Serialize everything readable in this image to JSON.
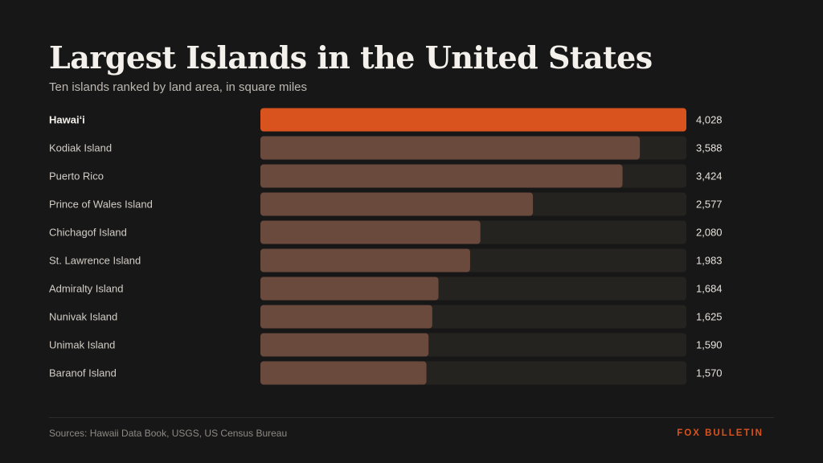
{
  "colors": {
    "background": "#171717",
    "highlight_bar": "#d9531e",
    "bar": "#6b4a3e",
    "track": "#252320",
    "brand": "#d9531e"
  },
  "footer": {
    "source": "Sources: Hawaii Data Book, USGS, US Census Bureau",
    "brand": "FOX BULLETIN"
  },
  "chart_data": {
    "type": "bar",
    "orientation": "horizontal",
    "title": "Largest Islands in the United States",
    "subtitle": "Ten islands ranked by land area, in square miles",
    "categories": [
      "Hawaiʻi",
      "Kodiak Island",
      "Puerto Rico",
      "Prince of Wales Island",
      "Chichagof Island",
      "St. Lawrence Island",
      "Admiralty Island",
      "Nunivak Island",
      "Unimak Island",
      "Baranof Island"
    ],
    "values": [
      4028,
      3588,
      3424,
      2577,
      2080,
      1983,
      1684,
      1625,
      1590,
      1570
    ],
    "value_labels": [
      "4,028",
      "3,588",
      "3,424",
      "2,577",
      "2,080",
      "1,983",
      "1,684",
      "1,625",
      "1,590",
      "1,570"
    ],
    "highlight_index": 0,
    "xlim": [
      0,
      4028
    ],
    "grid": false,
    "legend": "none"
  }
}
